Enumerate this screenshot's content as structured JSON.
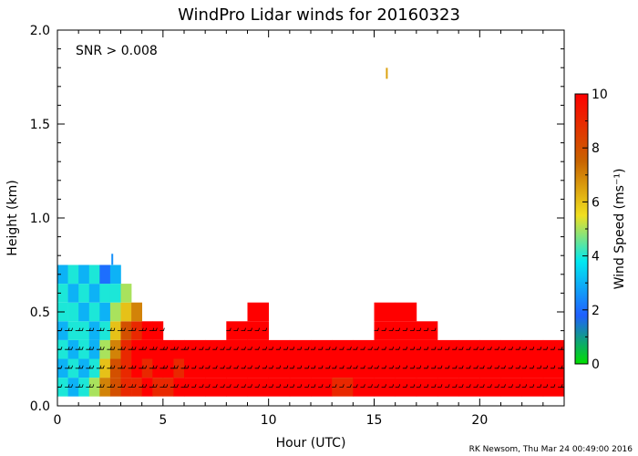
{
  "chart_data": {
    "type": "heatmap",
    "title": "WindPro Lidar winds for 20160323",
    "xlabel": "Hour (UTC)",
    "ylabel": "Height (km)",
    "xlim": [
      0,
      24
    ],
    "ylim": [
      0.0,
      2.0
    ],
    "xticks": [
      0,
      5,
      10,
      15,
      20
    ],
    "yticks": [
      0.0,
      0.5,
      1.0,
      1.5,
      2.0
    ],
    "annotation": "SNR > 0.008",
    "footer": "RK Newsom, Thu Mar 24 00:49:00 2016",
    "colorbar": {
      "label": "Wind Speed (ms⁻¹)",
      "min": 0,
      "max": 10,
      "ticks": [
        0,
        2,
        4,
        6,
        8,
        10
      ],
      "colors": [
        "#00e000",
        "#2060ff",
        "#00e8f0",
        "#f0e020",
        "#c86400",
        "#ff0000"
      ]
    },
    "height_bins": [
      0.1,
      0.2,
      0.3,
      0.4,
      0.5,
      0.6,
      0.7
    ],
    "hours": [
      0,
      0.5,
      1,
      1.5,
      2,
      2.5,
      3,
      3.5,
      4,
      4.5,
      5,
      5.5,
      6,
      7,
      8,
      9,
      10,
      11,
      12,
      13,
      14,
      15,
      16,
      17,
      18,
      19,
      20,
      21,
      22,
      23,
      24
    ],
    "wind_speed_rows": [
      {
        "height": 0.1,
        "values": [
          4,
          3,
          4,
          5,
          7,
          8,
          9,
          9,
          10,
          9,
          9,
          10,
          10,
          10,
          10,
          10,
          10,
          10,
          10,
          9,
          10,
          10,
          10,
          10,
          10,
          10,
          10,
          10,
          10,
          10,
          10
        ]
      },
      {
        "height": 0.2,
        "values": [
          3,
          4,
          3,
          4,
          6,
          8,
          9,
          10,
          9,
          10,
          10,
          9,
          10,
          10,
          10,
          10,
          10,
          10,
          10,
          10,
          10,
          10,
          10,
          10,
          10,
          10,
          10,
          10,
          10,
          10,
          10
        ]
      },
      {
        "height": 0.3,
        "values": [
          4,
          3,
          4,
          3,
          5,
          7,
          9,
          10,
          10,
          10,
          10,
          10,
          10,
          10,
          10,
          10,
          10,
          10,
          10,
          10,
          10,
          10,
          10,
          10,
          10,
          10,
          10,
          10,
          10,
          10,
          10
        ]
      },
      {
        "height": 0.4,
        "values": [
          3,
          4,
          4,
          3,
          4,
          6,
          8,
          9,
          10,
          10,
          null,
          null,
          null,
          null,
          10,
          10,
          null,
          null,
          null,
          null,
          null,
          10,
          10,
          10,
          null,
          null,
          null,
          null,
          null,
          null,
          10
        ]
      },
      {
        "height": 0.5,
        "values": [
          4,
          4,
          3,
          4,
          3,
          5,
          6,
          7,
          null,
          null,
          null,
          null,
          null,
          null,
          null,
          10,
          null,
          null,
          null,
          null,
          null,
          10,
          10,
          null,
          null,
          null,
          null,
          null,
          null,
          null,
          null
        ]
      },
      {
        "height": 0.6,
        "values": [
          4,
          3,
          4,
          3,
          4,
          4,
          5,
          null,
          null,
          null,
          null,
          null,
          null,
          null,
          null,
          null,
          null,
          null,
          null,
          null,
          null,
          null,
          null,
          null,
          null,
          null,
          null,
          null,
          null,
          null,
          null
        ]
      },
      {
        "height": 0.7,
        "values": [
          3,
          4,
          3,
          4,
          2,
          3,
          null,
          null,
          null,
          null,
          null,
          null,
          null,
          null,
          null,
          null,
          null,
          null,
          null,
          null,
          null,
          null,
          null,
          null,
          null,
          null,
          null,
          null,
          null,
          null,
          null
        ]
      }
    ],
    "isolated_points": [
      {
        "hour": 15.6,
        "height": 1.77,
        "speed": 6.5
      },
      {
        "hour": 2.6,
        "height": 0.78,
        "speed": 2.5
      }
    ],
    "grid": false,
    "legend": "colorbar-right"
  }
}
